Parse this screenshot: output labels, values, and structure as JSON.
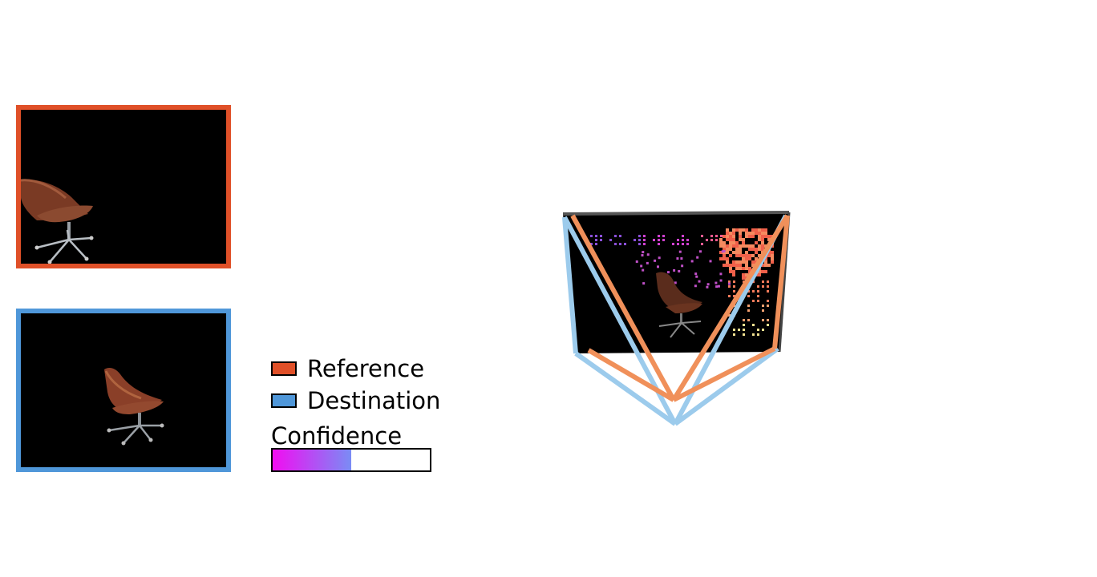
{
  "legend": {
    "reference": {
      "label": "Reference",
      "color": "#e05028"
    },
    "destination": {
      "label": "Destination",
      "color": "#4f97d9"
    }
  },
  "confidence": {
    "label": "Confidence",
    "fraction": 0.5,
    "gradient_start": "#f20cf2",
    "gradient_end": "#7a8cf5"
  },
  "scene": {
    "reference_camera_color": "#f0905a",
    "destination_camera_color": "#9ccbec",
    "object": "office-chair"
  }
}
